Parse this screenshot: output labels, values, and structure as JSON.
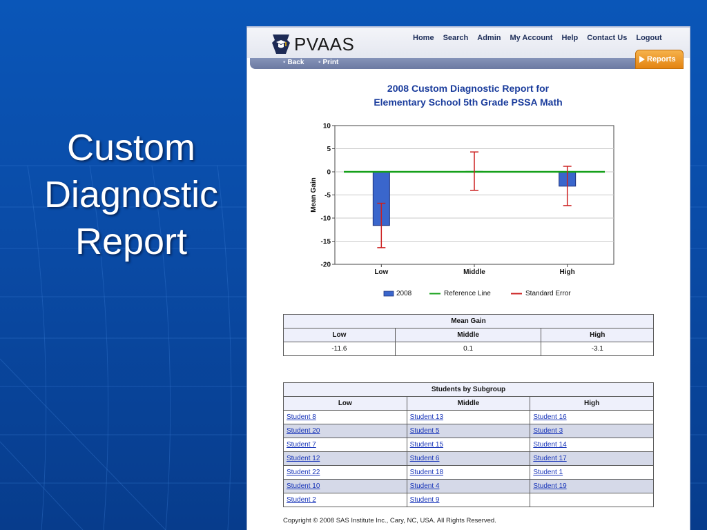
{
  "slide": {
    "title_lines": [
      "Custom",
      "Diagnostic",
      "Report"
    ]
  },
  "header": {
    "logo_text": "PVAAS",
    "nav": [
      "Home",
      "Search",
      "Admin",
      "My Account",
      "Help",
      "Contact Us",
      "Logout"
    ],
    "subnav": [
      "Back",
      "Print"
    ],
    "active_tab": "Reports"
  },
  "report": {
    "year": "2008",
    "title_line1": "Custom Diagnostic Report for",
    "title_line2": "Elementary School 5th Grade PSSA Math"
  },
  "chart_data": {
    "type": "bar",
    "categories": [
      "Low",
      "Middle",
      "High"
    ],
    "series": [
      {
        "name": "2008",
        "values": [
          -11.6,
          0.1,
          -3.1
        ]
      }
    ],
    "error_bars": [
      {
        "low": -16.4,
        "high": -6.8
      },
      {
        "low": -4.0,
        "high": 4.3
      },
      {
        "low": -7.3,
        "high": 1.2
      }
    ],
    "reference_line": 0,
    "ylabel": "Mean Gain",
    "xlabel": "",
    "ylim": [
      -20,
      10
    ],
    "yticks": [
      10,
      5,
      0,
      -5,
      -10,
      -15,
      -20
    ],
    "legend": [
      "2008",
      "Reference Line",
      "Standard Error"
    ],
    "legend_placement": "bottom",
    "grid": true,
    "colors": {
      "bar": "#3a66cc",
      "reference": "#16a01a",
      "error": "#cc1f1f"
    }
  },
  "mean_gain_table": {
    "title": "Mean Gain",
    "headers": [
      "Low",
      "Middle",
      "High"
    ],
    "values": [
      "-11.6",
      "0.1",
      "-3.1"
    ]
  },
  "students_table": {
    "title": "Students by Subgroup",
    "headers": [
      "Low",
      "Middle",
      "High"
    ],
    "rows": [
      [
        "Student 8",
        "Student 13",
        "Student 16"
      ],
      [
        "Student 20",
        "Student 5",
        "Student 3"
      ],
      [
        "Student 7",
        "Student 15",
        "Student 14"
      ],
      [
        "Student 12",
        "Student 6",
        "Student 17"
      ],
      [
        "Student 22",
        "Student 18",
        "Student 1"
      ],
      [
        "Student 10",
        "Student 4",
        "Student 19"
      ],
      [
        "Student 2",
        "Student 9",
        ""
      ]
    ]
  },
  "footer": {
    "copyright": "Copyright © 2008 SAS Institute Inc., Cary, NC, USA. All Rights Reserved."
  }
}
